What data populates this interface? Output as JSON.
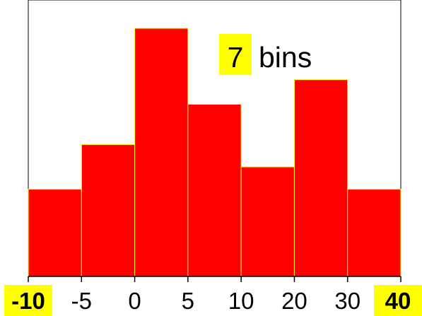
{
  "chart_data": {
    "type": "bar",
    "bin_edges": [
      "-10",
      "-5",
      "0",
      "5",
      "10",
      "20",
      "30",
      "40"
    ],
    "values": [
      3.9,
      5.9,
      11.1,
      7.7,
      4.9,
      8.8,
      3.9
    ],
    "ylim": [
      0,
      11.1
    ],
    "annotation": {
      "number": "7",
      "text": "bins"
    },
    "grid": false,
    "legend": "none"
  },
  "colors": {
    "bar_fill": "#ff0000",
    "bar_outline": "#ffff00",
    "highlight": "#ffff00",
    "axis": "#000000",
    "background": "#ffffff"
  }
}
